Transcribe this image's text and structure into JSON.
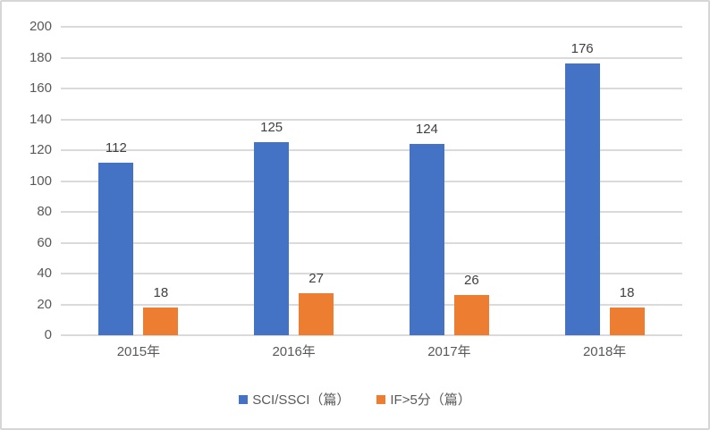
{
  "chart_data": {
    "type": "bar",
    "title": "",
    "xlabel": "",
    "ylabel": "",
    "categories": [
      "2015年",
      "2016年",
      "2017年",
      "2018年"
    ],
    "series": [
      {
        "name": "SCI/SSCI（篇）",
        "color": "#4472C4",
        "values": [
          112,
          125,
          124,
          176
        ]
      },
      {
        "name": "IF>5分（篇）",
        "color": "#ED7D31",
        "values": [
          18,
          27,
          26,
          18
        ]
      }
    ],
    "ylim": [
      0,
      200
    ],
    "yticks": [
      0,
      20,
      40,
      60,
      80,
      100,
      120,
      140,
      160,
      180,
      200
    ],
    "grid": true,
    "legend_position": "bottom",
    "colors": {
      "gridline": "#dadada",
      "axis_text": "#595959",
      "data_label": "#404040",
      "background": "#ffffff",
      "border": "#d6d6d6"
    }
  }
}
